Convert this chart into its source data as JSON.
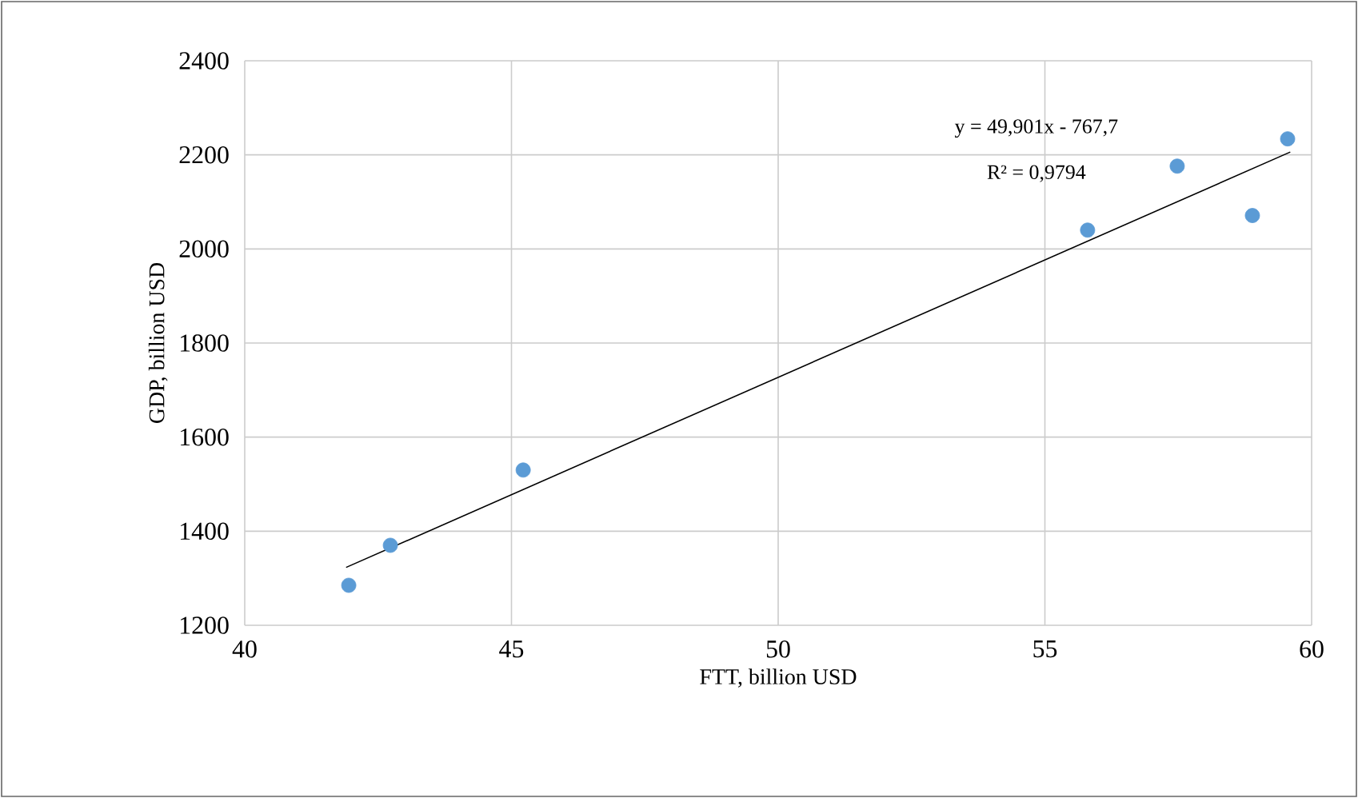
{
  "chart_data": {
    "type": "scatter",
    "xlabel": "FTT, billion USD",
    "ylabel": "GDP, billion USD",
    "xlim": [
      40,
      60
    ],
    "xticks": [
      40,
      45,
      50,
      55,
      60
    ],
    "ylim": [
      1200,
      2400
    ],
    "yticks": [
      1200,
      1400,
      1600,
      1800,
      2000,
      2200,
      2400
    ],
    "grid": true,
    "series": [
      {
        "color": "#5b9bd5",
        "marker": "circle",
        "x": [
          41.95,
          42.73,
          45.22,
          55.8,
          57.48,
          58.89,
          59.55
        ],
        "values": [
          1285,
          1370,
          1530,
          2040,
          2176,
          2071,
          2234
        ]
      },
      {
        "type": "line",
        "color": "#000000",
        "marker": "none",
        "line_style": "solid",
        "x": [
          41.9,
          59.6
        ],
        "values": [
          1323,
          2206
        ]
      }
    ],
    "annotations": [
      "y = 49,901x - 767,7",
      "R² = 0,9794"
    ]
  }
}
